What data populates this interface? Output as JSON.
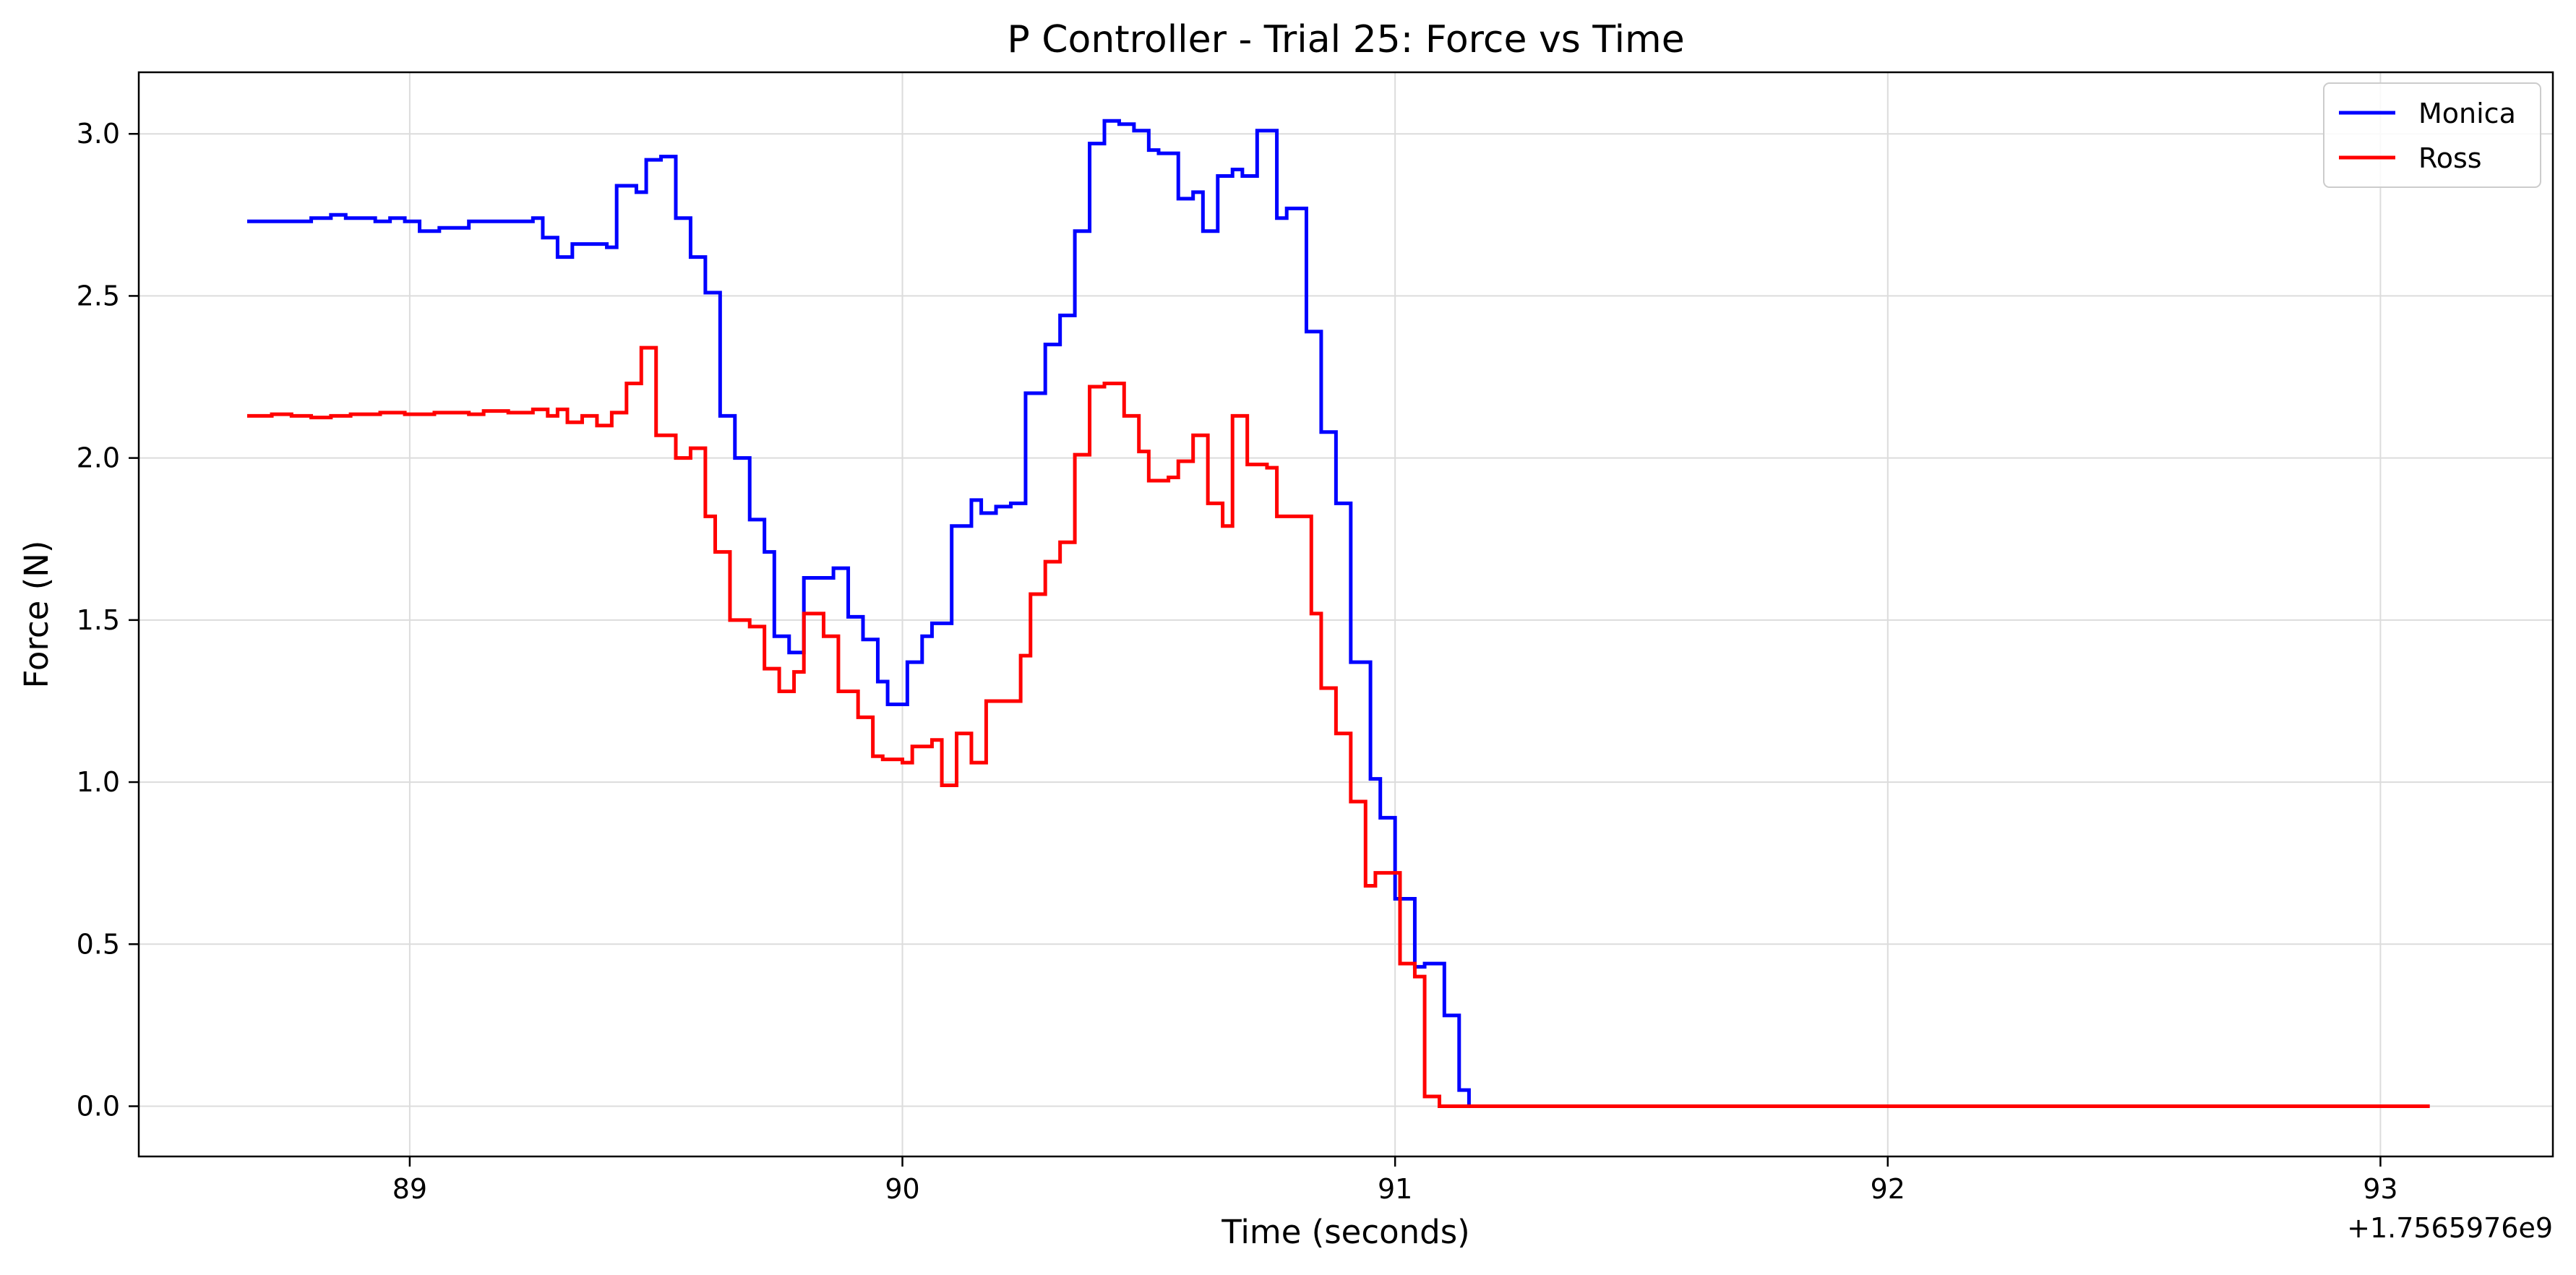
{
  "chart_data": {
    "type": "line",
    "title": "P Controller - Trial 25: Force vs Time",
    "xlabel": "Time (seconds)",
    "ylabel": "Force (N)",
    "x_offset_label": "+1.7565976e9",
    "xlim": [
      88.45,
      93.35
    ],
    "ylim": [
      -0.155,
      3.19
    ],
    "xticks": [
      89,
      90,
      91,
      92,
      93
    ],
    "xtick_labels": [
      "89",
      "90",
      "91",
      "92",
      "93"
    ],
    "yticks": [
      0.0,
      0.5,
      1.0,
      1.5,
      2.0,
      2.5,
      3.0
    ],
    "ytick_labels": [
      "0.0",
      "0.5",
      "1.0",
      "1.5",
      "2.0",
      "2.5",
      "3.0"
    ],
    "grid": true,
    "legend_position": "top-right",
    "step": true,
    "series": [
      {
        "name": "Monica",
        "color": "#0000ff",
        "points": [
          [
            88.67,
            2.73
          ],
          [
            88.8,
            2.74
          ],
          [
            88.84,
            2.75
          ],
          [
            88.87,
            2.74
          ],
          [
            88.93,
            2.73
          ],
          [
            88.96,
            2.74
          ],
          [
            88.99,
            2.73
          ],
          [
            89.02,
            2.7
          ],
          [
            89.06,
            2.71
          ],
          [
            89.12,
            2.73
          ],
          [
            89.25,
            2.74
          ],
          [
            89.27,
            2.68
          ],
          [
            89.3,
            2.62
          ],
          [
            89.33,
            2.66
          ],
          [
            89.4,
            2.65
          ],
          [
            89.42,
            2.84
          ],
          [
            89.46,
            2.82
          ],
          [
            89.48,
            2.92
          ],
          [
            89.51,
            2.93
          ],
          [
            89.54,
            2.74
          ],
          [
            89.57,
            2.62
          ],
          [
            89.6,
            2.51
          ],
          [
            89.63,
            2.13
          ],
          [
            89.66,
            2.0
          ],
          [
            89.69,
            1.81
          ],
          [
            89.72,
            1.71
          ],
          [
            89.74,
            1.45
          ],
          [
            89.77,
            1.4
          ],
          [
            89.8,
            1.63
          ],
          [
            89.86,
            1.66
          ],
          [
            89.89,
            1.51
          ],
          [
            89.92,
            1.44
          ],
          [
            89.95,
            1.31
          ],
          [
            89.97,
            1.24
          ],
          [
            90.01,
            1.37
          ],
          [
            90.04,
            1.45
          ],
          [
            90.06,
            1.49
          ],
          [
            90.1,
            1.79
          ],
          [
            90.14,
            1.87
          ],
          [
            90.16,
            1.83
          ],
          [
            90.19,
            1.85
          ],
          [
            90.22,
            1.86
          ],
          [
            90.25,
            2.2
          ],
          [
            90.29,
            2.35
          ],
          [
            90.32,
            2.44
          ],
          [
            90.35,
            2.7
          ],
          [
            90.38,
            2.97
          ],
          [
            90.41,
            3.04
          ],
          [
            90.44,
            3.03
          ],
          [
            90.47,
            3.01
          ],
          [
            90.5,
            2.95
          ],
          [
            90.52,
            2.94
          ],
          [
            90.56,
            2.8
          ],
          [
            90.59,
            2.82
          ],
          [
            90.61,
            2.7
          ],
          [
            90.64,
            2.87
          ],
          [
            90.67,
            2.89
          ],
          [
            90.69,
            2.87
          ],
          [
            90.72,
            3.01
          ],
          [
            90.76,
            2.74
          ],
          [
            90.78,
            2.77
          ],
          [
            90.82,
            2.39
          ],
          [
            90.85,
            2.08
          ],
          [
            90.88,
            1.86
          ],
          [
            90.91,
            1.37
          ],
          [
            90.95,
            1.01
          ],
          [
            90.97,
            0.89
          ],
          [
            91.0,
            0.64
          ],
          [
            91.04,
            0.43
          ],
          [
            91.06,
            0.44
          ],
          [
            91.1,
            0.28
          ],
          [
            91.13,
            0.05
          ],
          [
            91.15,
            0.0
          ],
          [
            93.1,
            0.0
          ]
        ]
      },
      {
        "name": "Ross",
        "color": "#ff0000",
        "points": [
          [
            88.67,
            2.13
          ],
          [
            88.72,
            2.135
          ],
          [
            88.76,
            2.13
          ],
          [
            88.8,
            2.125
          ],
          [
            88.84,
            2.13
          ],
          [
            88.88,
            2.135
          ],
          [
            88.94,
            2.14
          ],
          [
            88.99,
            2.135
          ],
          [
            89.05,
            2.14
          ],
          [
            89.12,
            2.135
          ],
          [
            89.15,
            2.145
          ],
          [
            89.2,
            2.14
          ],
          [
            89.25,
            2.15
          ],
          [
            89.28,
            2.13
          ],
          [
            89.3,
            2.15
          ],
          [
            89.32,
            2.11
          ],
          [
            89.35,
            2.13
          ],
          [
            89.38,
            2.1
          ],
          [
            89.41,
            2.14
          ],
          [
            89.44,
            2.23
          ],
          [
            89.47,
            2.34
          ],
          [
            89.5,
            2.07
          ],
          [
            89.54,
            2.0
          ],
          [
            89.57,
            2.03
          ],
          [
            89.6,
            1.82
          ],
          [
            89.62,
            1.71
          ],
          [
            89.65,
            1.5
          ],
          [
            89.69,
            1.48
          ],
          [
            89.72,
            1.35
          ],
          [
            89.75,
            1.28
          ],
          [
            89.78,
            1.34
          ],
          [
            89.8,
            1.52
          ],
          [
            89.84,
            1.45
          ],
          [
            89.87,
            1.28
          ],
          [
            89.91,
            1.2
          ],
          [
            89.94,
            1.08
          ],
          [
            89.96,
            1.07
          ],
          [
            90.0,
            1.06
          ],
          [
            90.02,
            1.11
          ],
          [
            90.06,
            1.13
          ],
          [
            90.08,
            0.99
          ],
          [
            90.11,
            1.15
          ],
          [
            90.14,
            1.06
          ],
          [
            90.17,
            1.25
          ],
          [
            90.21,
            1.25
          ],
          [
            90.24,
            1.39
          ],
          [
            90.26,
            1.58
          ],
          [
            90.29,
            1.68
          ],
          [
            90.32,
            1.74
          ],
          [
            90.35,
            2.01
          ],
          [
            90.38,
            2.22
          ],
          [
            90.41,
            2.23
          ],
          [
            90.45,
            2.13
          ],
          [
            90.48,
            2.02
          ],
          [
            90.5,
            1.93
          ],
          [
            90.54,
            1.94
          ],
          [
            90.56,
            1.99
          ],
          [
            90.59,
            2.07
          ],
          [
            90.62,
            1.86
          ],
          [
            90.65,
            1.79
          ],
          [
            90.67,
            2.13
          ],
          [
            90.7,
            1.98
          ],
          [
            90.74,
            1.97
          ],
          [
            90.76,
            1.82
          ],
          [
            90.83,
            1.52
          ],
          [
            90.85,
            1.29
          ],
          [
            90.88,
            1.15
          ],
          [
            90.91,
            0.94
          ],
          [
            90.94,
            0.68
          ],
          [
            90.96,
            0.72
          ],
          [
            91.01,
            0.44
          ],
          [
            91.04,
            0.4
          ],
          [
            91.06,
            0.03
          ],
          [
            91.09,
            0.0
          ],
          [
            93.1,
            0.0
          ]
        ]
      }
    ]
  }
}
